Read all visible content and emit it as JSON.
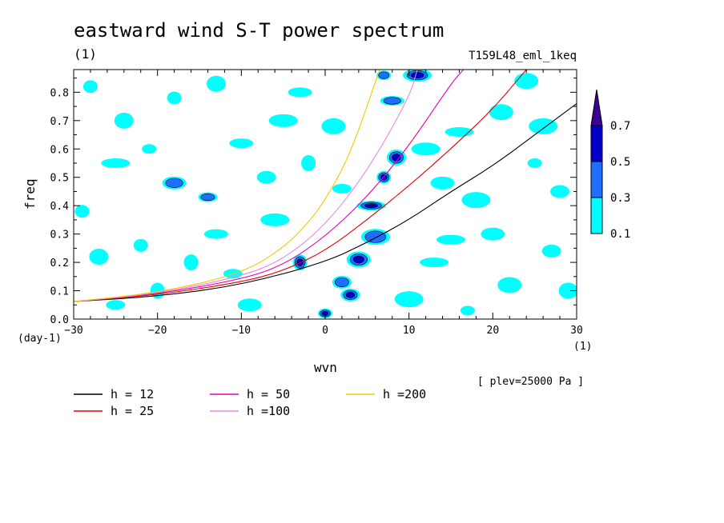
{
  "chart_data": {
    "type": "contour",
    "title": "eastward wind S-T power spectrum",
    "subtitle": "(1)",
    "run_label": "T159L48_eml_1keq",
    "annotation": "[ plev=25000 Pa ]",
    "xlabel": "wvn",
    "ylabel": "freq",
    "x_unit": "(1)",
    "y_unit": "(day-1)",
    "xlim": [
      -30,
      30
    ],
    "ylim": [
      0,
      0.88
    ],
    "x_ticks": [
      -30,
      -20,
      -10,
      0,
      10,
      20,
      30
    ],
    "x_tick_labels": [
      "−30",
      "−20",
      "−10",
      "0",
      "10",
      "20",
      "30"
    ],
    "y_ticks": [
      0.0,
      0.1,
      0.2,
      0.3,
      0.4,
      0.5,
      0.6,
      0.7,
      0.8
    ],
    "y_tick_labels": [
      "0.0",
      "0.1",
      "0.2",
      "0.3",
      "0.4",
      "0.5",
      "0.6",
      "0.7",
      "0.8"
    ],
    "colorbar": {
      "levels": [
        "0.1",
        "0.3",
        "0.5",
        "0.7"
      ],
      "colors": [
        "#00ffff",
        "#1e6fff",
        "#0000c8",
        "#3c0096"
      ]
    },
    "curves": [
      {
        "name": "h = 12",
        "color": "#000000",
        "points": [
          [
            -30,
            0.062
          ],
          [
            -20,
            0.08
          ],
          [
            -10,
            0.12
          ],
          [
            0,
            0.2
          ],
          [
            5,
            0.27
          ],
          [
            10,
            0.35
          ],
          [
            15,
            0.45
          ],
          [
            20,
            0.54
          ],
          [
            25,
            0.65
          ],
          [
            30,
            0.76
          ]
        ]
      },
      {
        "name": "h = 25",
        "color": "#e60000",
        "points": [
          [
            -30,
            0.062
          ],
          [
            -20,
            0.085
          ],
          [
            -10,
            0.13
          ],
          [
            -5,
            0.17
          ],
          [
            0,
            0.24
          ],
          [
            5,
            0.35
          ],
          [
            10,
            0.47
          ],
          [
            15,
            0.6
          ],
          [
            20,
            0.74
          ],
          [
            24,
            0.88
          ]
        ]
      },
      {
        "name": "h = 50",
        "color": "#e600b4",
        "points": [
          [
            -30,
            0.062
          ],
          [
            -20,
            0.088
          ],
          [
            -10,
            0.14
          ],
          [
            -5,
            0.19
          ],
          [
            0,
            0.29
          ],
          [
            5,
            0.43
          ],
          [
            10,
            0.61
          ],
          [
            15,
            0.83
          ],
          [
            16.5,
            0.88
          ]
        ]
      },
      {
        "name": "h =100",
        "color": "#e68ce6",
        "points": [
          [
            -30,
            0.062
          ],
          [
            -20,
            0.09
          ],
          [
            -10,
            0.15
          ],
          [
            -5,
            0.21
          ],
          [
            0,
            0.33
          ],
          [
            5,
            0.52
          ],
          [
            10,
            0.78
          ],
          [
            11,
            0.88
          ]
        ]
      },
      {
        "name": "h =200",
        "color": "#f0c800",
        "points": [
          [
            -30,
            0.062
          ],
          [
            -20,
            0.092
          ],
          [
            -10,
            0.16
          ],
          [
            -5,
            0.25
          ],
          [
            -2,
            0.34
          ],
          [
            0,
            0.42
          ],
          [
            3,
            0.58
          ],
          [
            6.5,
            0.88
          ]
        ]
      }
    ],
    "blobs": [
      {
        "x": 0,
        "y": 0.02,
        "level": 3
      },
      {
        "x": 3,
        "y": 0.085,
        "level": 3
      },
      {
        "x": 4,
        "y": 0.21,
        "level": 3
      },
      {
        "x": 5.5,
        "y": 0.4,
        "level": 4
      },
      {
        "x": 7,
        "y": 0.5,
        "level": 3
      },
      {
        "x": 8.5,
        "y": 0.57,
        "level": 3
      },
      {
        "x": 8,
        "y": 0.77,
        "level": 2
      },
      {
        "x": 11,
        "y": 0.86,
        "level": 3
      },
      {
        "x": -3,
        "y": 0.2,
        "level": 3
      },
      {
        "x": -14,
        "y": 0.43,
        "level": 2
      },
      {
        "x": -18,
        "y": 0.48,
        "level": 2
      },
      {
        "x": 6,
        "y": 0.29,
        "level": 2
      },
      {
        "x": 7,
        "y": 0.86,
        "level": 2
      },
      {
        "x": 2,
        "y": 0.13,
        "level": 2
      },
      {
        "x": 21,
        "y": 0.73,
        "level": 1
      },
      {
        "x": -25,
        "y": 0.55,
        "level": 1
      },
      {
        "x": -28,
        "y": 0.82,
        "level": 1
      },
      {
        "x": -24,
        "y": 0.7,
        "level": 1
      },
      {
        "x": -10,
        "y": 0.62,
        "level": 1
      },
      {
        "x": -5,
        "y": 0.7,
        "level": 1
      },
      {
        "x": -2,
        "y": 0.55,
        "level": 1
      },
      {
        "x": 2,
        "y": 0.46,
        "level": 1
      },
      {
        "x": 14,
        "y": 0.48,
        "level": 1
      },
      {
        "x": 18,
        "y": 0.42,
        "level": 1
      },
      {
        "x": 25,
        "y": 0.55,
        "level": 1
      },
      {
        "x": 27,
        "y": 0.24,
        "level": 1
      },
      {
        "x": 22,
        "y": 0.12,
        "level": 1
      },
      {
        "x": 15,
        "y": 0.28,
        "level": 1
      },
      {
        "x": -22,
        "y": 0.26,
        "level": 1
      },
      {
        "x": -27,
        "y": 0.22,
        "level": 1
      },
      {
        "x": -13,
        "y": 0.3,
        "level": 1
      },
      {
        "x": -6,
        "y": 0.35,
        "level": 1
      },
      {
        "x": -20,
        "y": 0.1,
        "level": 1
      },
      {
        "x": -25,
        "y": 0.05,
        "level": 1
      },
      {
        "x": -9,
        "y": 0.05,
        "level": 1
      },
      {
        "x": 10,
        "y": 0.07,
        "level": 1
      },
      {
        "x": 17,
        "y": 0.03,
        "level": 1
      },
      {
        "x": 28,
        "y": 0.45,
        "level": 1
      },
      {
        "x": 24,
        "y": 0.84,
        "level": 1
      },
      {
        "x": 16,
        "y": 0.66,
        "level": 1
      },
      {
        "x": -18,
        "y": 0.78,
        "level": 1
      },
      {
        "x": -13,
        "y": 0.83,
        "level": 1
      },
      {
        "x": -3,
        "y": 0.8,
        "level": 1
      },
      {
        "x": 12,
        "y": 0.6,
        "level": 1
      },
      {
        "x": -16,
        "y": 0.2,
        "level": 1
      },
      {
        "x": -11,
        "y": 0.16,
        "level": 1
      },
      {
        "x": 20,
        "y": 0.3,
        "level": 1
      },
      {
        "x": 26,
        "y": 0.68,
        "level": 1
      },
      {
        "x": -21,
        "y": 0.6,
        "level": 1
      },
      {
        "x": -7,
        "y": 0.5,
        "level": 1
      },
      {
        "x": 1,
        "y": 0.68,
        "level": 1
      },
      {
        "x": 13,
        "y": 0.2,
        "level": 1
      },
      {
        "x": -29,
        "y": 0.38,
        "level": 1
      },
      {
        "x": 29,
        "y": 0.1,
        "level": 1
      }
    ]
  },
  "legend": [
    {
      "label": "h = 12",
      "color": "#000000"
    },
    {
      "label": "h = 25",
      "color": "#e60000"
    },
    {
      "label": "h = 50",
      "color": "#e600b4"
    },
    {
      "label": "h =100",
      "color": "#e68ce6"
    },
    {
      "label": "h =200",
      "color": "#f0c800"
    }
  ]
}
